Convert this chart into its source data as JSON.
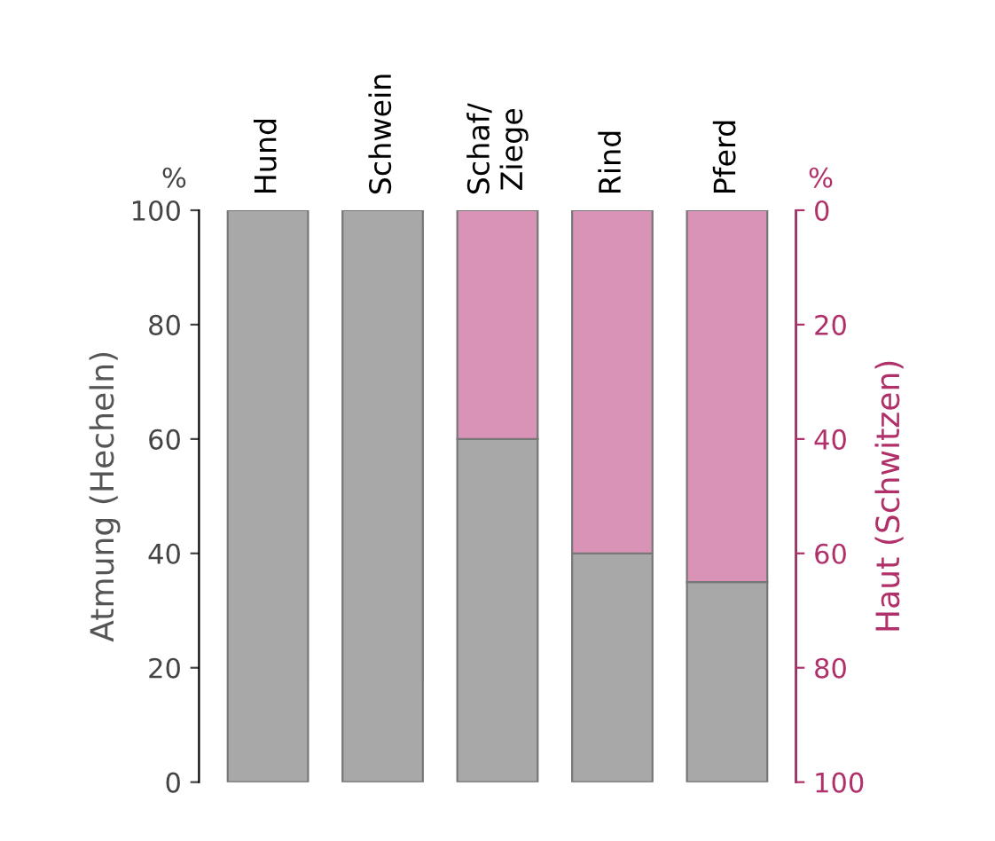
{
  "chart_data": {
    "type": "bar",
    "categories": [
      "Hund",
      "Schwein",
      "Schaf/\nZiege",
      "Rind",
      "Pferd"
    ],
    "series": [
      {
        "color": "#a8a8a8",
        "values": [
          100,
          100,
          60,
          40,
          35
        ]
      },
      {
        "color": "#d993b6",
        "values": [
          0,
          0,
          40,
          60,
          65
        ]
      }
    ],
    "ylabel": "Atmung (Hecheln)",
    "y2label": "Haut (Schwitzen)",
    "ylim": [
      0,
      100
    ],
    "yticks": [
      0,
      20,
      40,
      60,
      80,
      100
    ],
    "y2lim": [
      100,
      0
    ],
    "y2ticks": [
      0,
      20,
      40,
      60,
      80,
      100
    ],
    "annotations": [
      "%",
      "%"
    ],
    "stacked": true,
    "grid": false,
    "legend": false
  }
}
